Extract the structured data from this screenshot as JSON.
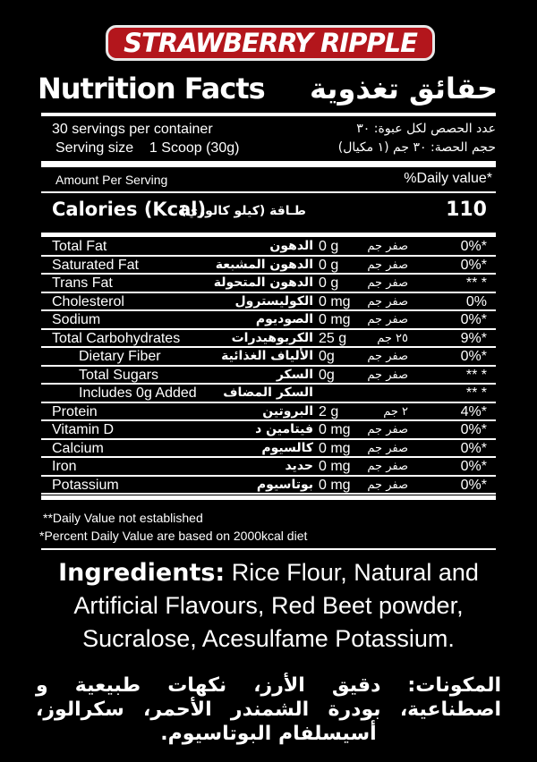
{
  "flavor": "STRAWBERRY RIPPLE",
  "title_en": "Nutrition Facts",
  "title_ar": "حقائق تغذوية",
  "servings": {
    "per_container_en": "30 servings per container",
    "serving_size_en": "Serving size    1 Scoop (30g)",
    "per_container_ar": "عدد الحصص لكل عبوة: ٣٠",
    "serving_size_ar": "حجم الحصة: ٣٠ جم (١ مكيال)"
  },
  "amount_per_serving": "Amount Per Serving",
  "daily_value_header": "%Daily value*",
  "calories": {
    "label_en": "Calories (Kcal)",
    "label_ar": "طـاقة (كيلو كالوري)",
    "value": "110"
  },
  "nutrients": [
    {
      "en": "Total Fat",
      "ar": "الدهون",
      "amount": "0 g",
      "amount_ar": "صفر جم",
      "dv": "0%*"
    },
    {
      "en": "Saturated Fat",
      "ar": "الدهون المشبعة",
      "amount": "0 g",
      "amount_ar": "صفر جم",
      "dv": "0%*"
    },
    {
      "en": "Trans Fat",
      "ar": "الدهون المتحولة",
      "amount": "0 g",
      "amount_ar": "صفر جم",
      "dv": "** *"
    },
    {
      "en": "Cholesterol",
      "ar": "الكوليسترول",
      "amount": "0 mg",
      "amount_ar": "صفر جم",
      "dv": "0%"
    },
    {
      "en": "Sodium",
      "ar": "الصوديوم",
      "amount": "0 mg",
      "amount_ar": "صفر جم",
      "dv": "0%*"
    },
    {
      "en": "Total Carbohydrates",
      "ar": "الكربوهيدرات",
      "amount": "25 g",
      "amount_ar": "٢٥ جم",
      "dv": "9%*"
    },
    {
      "en": "Dietary Fiber",
      "ar": "الألياف الغذائية",
      "amount": "0g",
      "amount_ar": "صفر جم",
      "dv": "0%*",
      "indent": true
    },
    {
      "en": "Total Sugars",
      "ar": "السكر",
      "amount": "0g",
      "amount_ar": "صفر جم",
      "dv": "** *",
      "indent": true
    },
    {
      "en": "Includes 0g Added",
      "ar": "السكر المضاف",
      "amount": "",
      "amount_ar": "",
      "dv": "** *",
      "indent": true
    },
    {
      "en": "Protein",
      "ar": "البروتين",
      "amount": "2 g",
      "amount_ar": "٢ جم",
      "dv": "4%*"
    },
    {
      "en": "Vitamin D",
      "ar": "فيتامين د",
      "amount": "0 mg",
      "amount_ar": "صفر جم",
      "dv": "0%*"
    },
    {
      "en": "Calcium",
      "ar": "كالسيوم",
      "amount": "0 mg",
      "amount_ar": "صفر جم",
      "dv": "0%*"
    },
    {
      "en": "Iron",
      "ar": "حديد",
      "amount": "0 mg",
      "amount_ar": "صفر جم",
      "dv": "0%*"
    },
    {
      "en": "Potassium",
      "ar": "بوتاسيوم",
      "amount": "0 mg",
      "amount_ar": "صفر جم",
      "dv": "0%*"
    }
  ],
  "footnotes": [
    "**Daily Value not established",
    "*Percent Daily Value are based on 2000kcal diet"
  ],
  "ingredients": {
    "label": "Ingredients:",
    "text": " Rice Flour, Natural and Artificial Flavours, Red Beet powder, Sucralose,  Acesulfame Potassium."
  },
  "ingredients_ar": "المكونات: دقيق الأرز، نكهات طبيعية و اصطناعية، بودرة الشمندر الأحمر، سكرالوز، أسيسلفام البوتاسيوم.",
  "colors": {
    "badge": "#b3161c",
    "background": "#000000",
    "text": "#ffffff"
  }
}
